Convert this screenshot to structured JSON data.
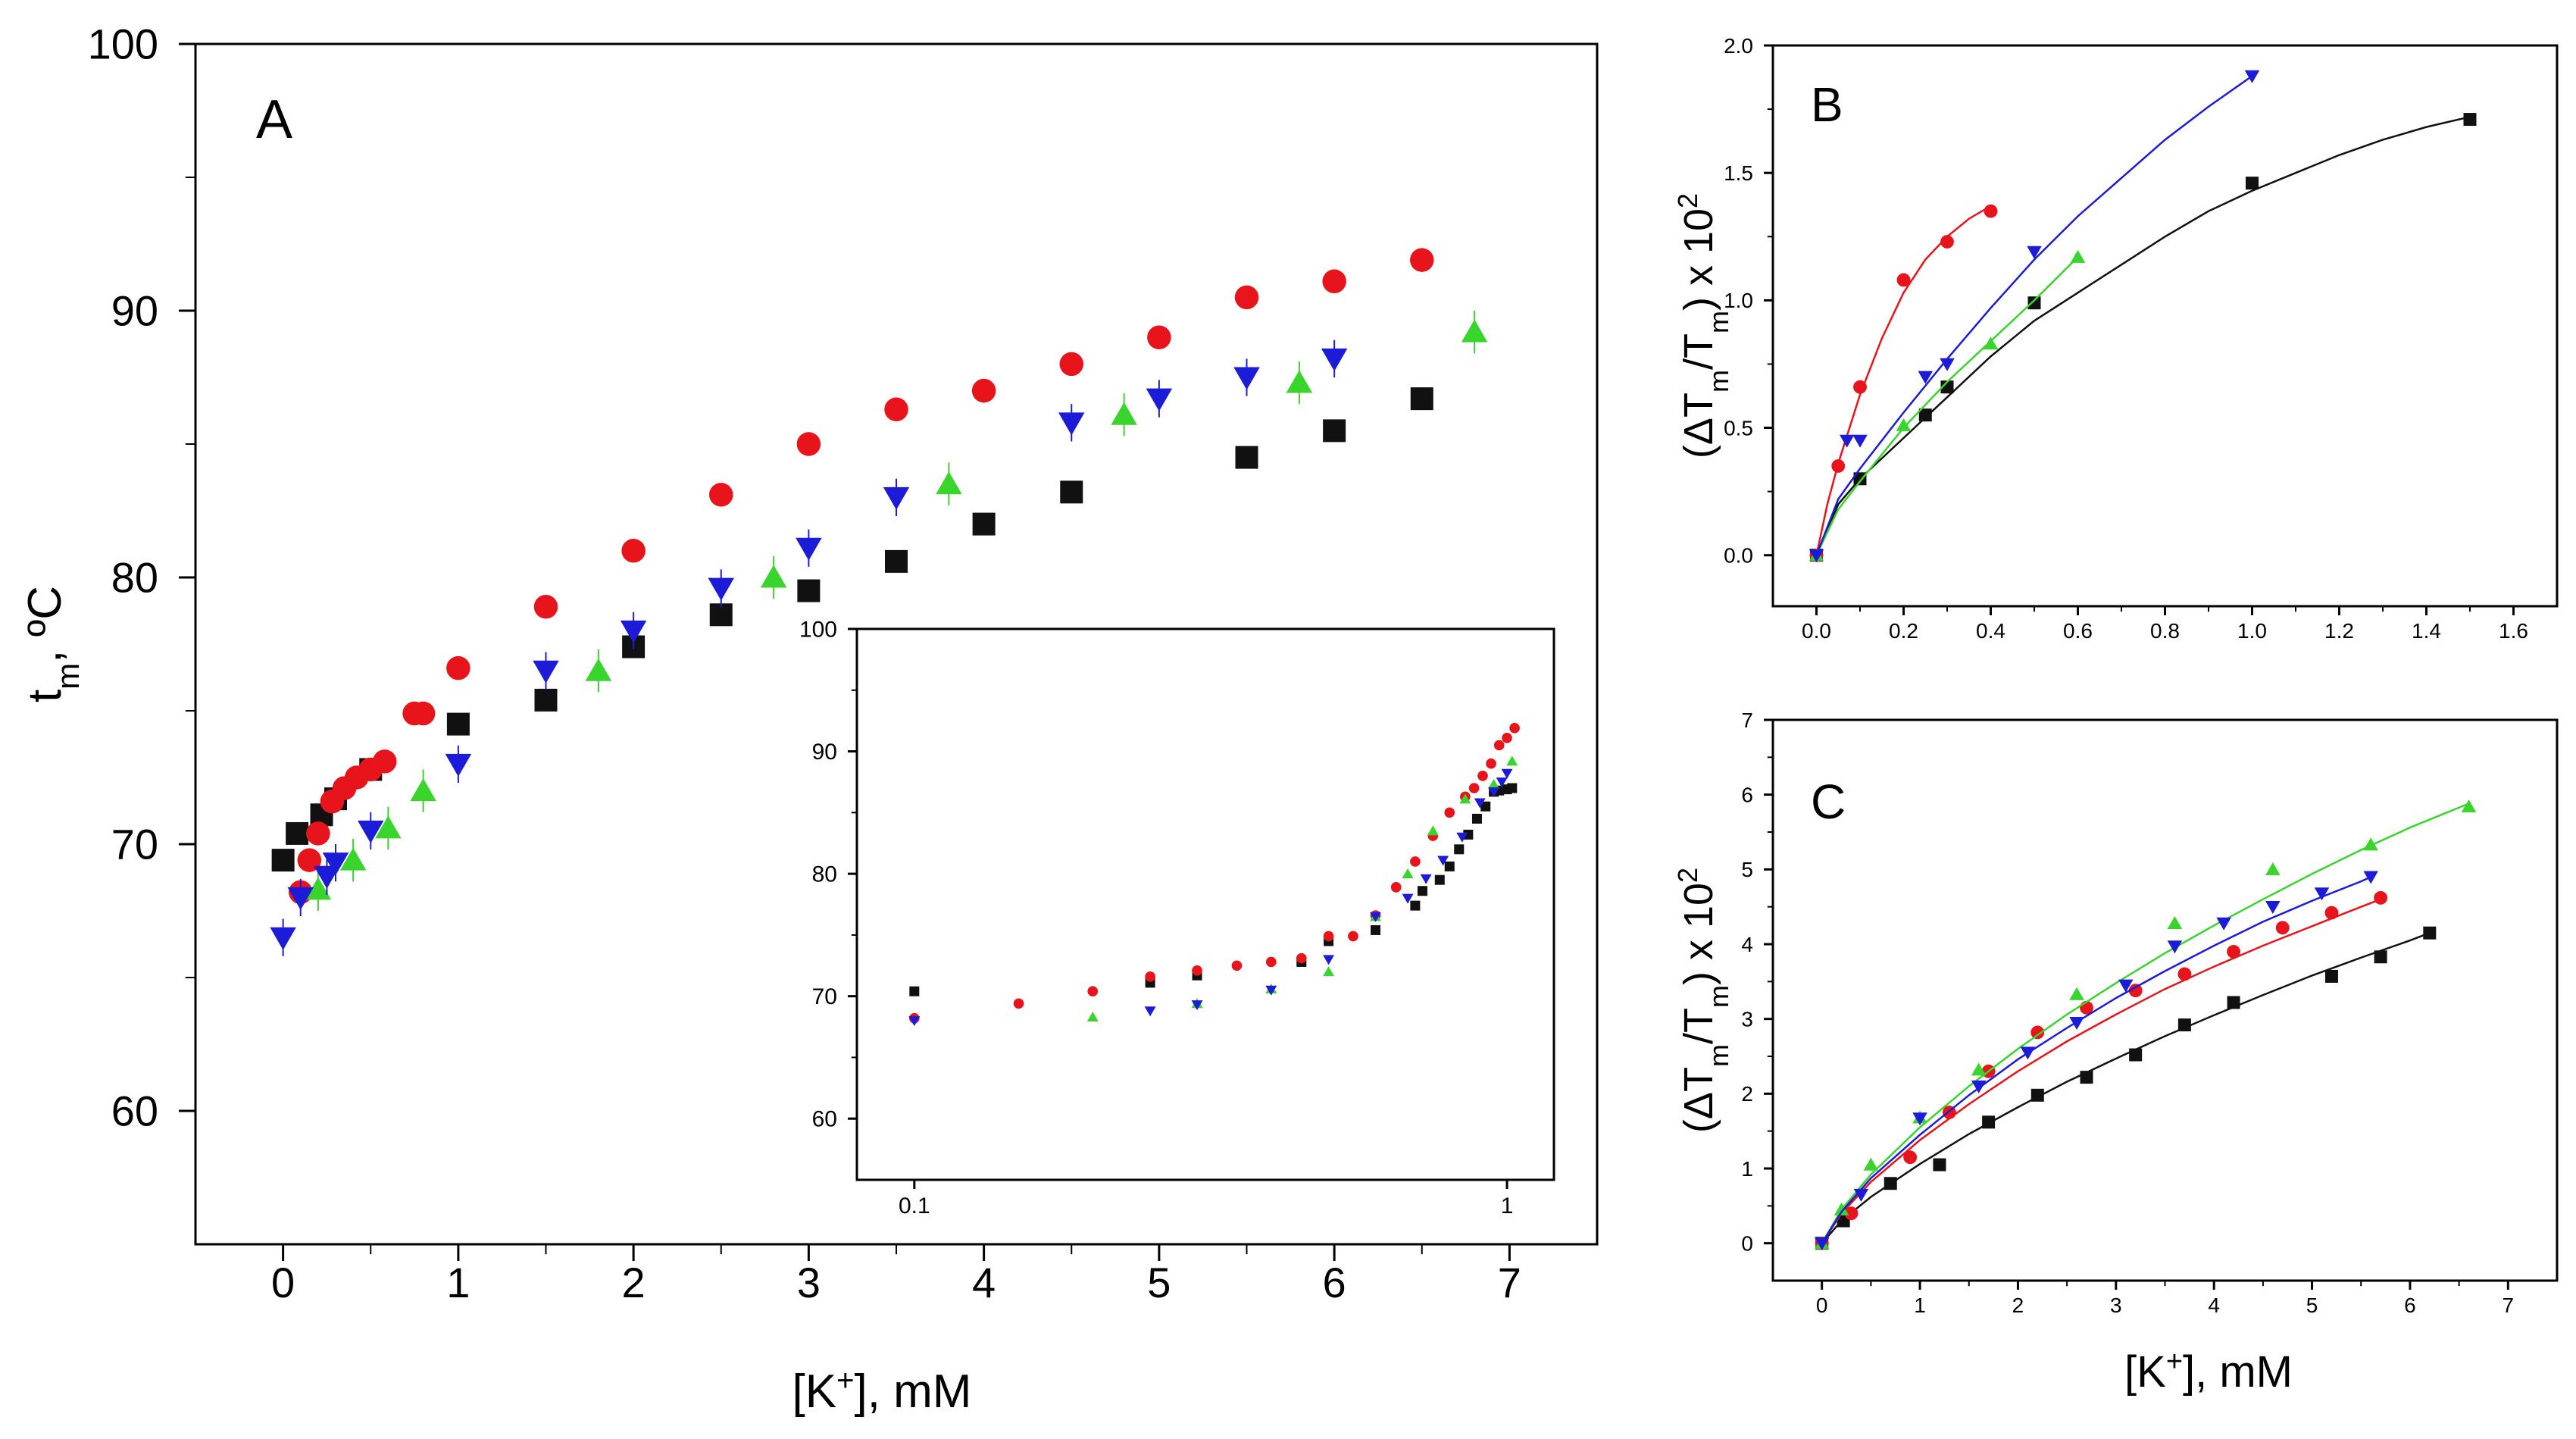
{
  "colors": {
    "black": "#111111",
    "red": "#e8141b",
    "green": "#39d42c",
    "blue": "#1b1bd8",
    "axis": "#000000"
  },
  "chart_data": [
    {
      "id": "A",
      "type": "scatter",
      "panel_label": "A",
      "xlabel_prefix": "[K",
      "xlabel_sup": "+",
      "xlabel_suffix": "], mM",
      "ylabel_main": "t",
      "ylabel_sub": "m",
      "ylabel_suffix": ", ºC",
      "xlim": [
        -0.5,
        7.5
      ],
      "ylim": [
        55,
        100
      ],
      "xticks": [
        0,
        1,
        2,
        3,
        4,
        5,
        6,
        7
      ],
      "yticks": [
        60,
        70,
        80,
        90,
        100
      ],
      "series": [
        {
          "name": "black squares",
          "marker": "square",
          "color": "black",
          "x": [
            0,
            0.08,
            0.22,
            0.3,
            0.5,
            1,
            1.5,
            2,
            2.5,
            3,
            3.5,
            4,
            4.5,
            5.5,
            6,
            6.5
          ],
          "y": [
            69.4,
            70.4,
            71.1,
            71.7,
            72.8,
            74.5,
            75.4,
            77.4,
            78.6,
            79.5,
            80.6,
            82,
            83.2,
            84.5,
            85.5,
            86.7
          ]
        },
        {
          "name": "red circles",
          "marker": "circle",
          "color": "red",
          "x": [
            0.1,
            0.15,
            0.2,
            0.28,
            0.35,
            0.42,
            0.5,
            0.58,
            0.75,
            0.8,
            1,
            1.5,
            2,
            2.5,
            3,
            3.5,
            4,
            4.5,
            5,
            5.5,
            6,
            6.5
          ],
          "y": [
            68.2,
            69.4,
            70.4,
            71.6,
            72.1,
            72.5,
            72.8,
            73.1,
            74.9,
            74.9,
            76.6,
            78.9,
            81,
            83.1,
            85,
            86.3,
            87,
            88,
            89,
            90.5,
            91.1,
            91.9
          ],
          "errors": [
            0.3,
            0.3,
            0.3,
            0.3,
            0.3,
            0.3,
            0.3,
            0.3,
            0.3,
            0.3,
            0.3,
            0.3,
            0.3,
            0.3,
            0.3,
            0.3,
            0.3,
            0.3,
            0.3,
            0.3,
            0.3,
            0.3
          ]
        },
        {
          "name": "green triangles",
          "marker": "triangle-up",
          "color": "green",
          "x": [
            0.2,
            0.4,
            0.6,
            0.8,
            1.8,
            2.8,
            3.8,
            4.8,
            5.8,
            6.8
          ],
          "y": [
            68.3,
            69.4,
            70.6,
            72.0,
            76.5,
            80.0,
            83.5,
            86.1,
            87.3,
            89.2
          ],
          "errors": [
            0.8,
            0.8,
            0.8,
            0.8,
            0.8,
            0.8,
            0.8,
            0.8,
            0.8,
            0.8
          ]
        },
        {
          "name": "blue inverted triangles",
          "marker": "triangle-down",
          "color": "blue",
          "x": [
            0,
            0.1,
            0.25,
            0.3,
            0.5,
            1,
            1.5,
            2,
            2.5,
            3,
            3.5,
            4.5,
            5,
            5.5,
            6
          ],
          "y": [
            66.5,
            68,
            68.8,
            69.3,
            70.5,
            73,
            76.5,
            78,
            79.6,
            81.1,
            83,
            85.8,
            86.7,
            87.5,
            88.2
          ],
          "errors": [
            0.7,
            0.7,
            0.7,
            0.7,
            0.7,
            0.7,
            0.7,
            0.7,
            0.7,
            0.7,
            0.7,
            0.7,
            0.7,
            0.7,
            0.7
          ]
        }
      ]
    },
    {
      "id": "A-inset",
      "type": "scatter",
      "xscale": "log",
      "xlim": [
        0.08,
        1.2
      ],
      "ylim": [
        55,
        100
      ],
      "xtick_values": [
        0.1,
        1
      ],
      "xtick_labels": [
        "0.1",
        "1"
      ],
      "yticks": [
        60,
        70,
        80,
        90,
        100
      ],
      "series": [
        {
          "name": "black squares",
          "marker": "square",
          "color": "black",
          "x": [
            0.1,
            0.25,
            0.3,
            0.45,
            0.5,
            0.6,
            0.7,
            0.72,
            0.77,
            0.8,
            0.83,
            0.86,
            0.89,
            0.92,
            0.95,
            0.97,
            1.0,
            1.02
          ],
          "y": [
            70.4,
            71.1,
            71.7,
            72.8,
            74.5,
            75.4,
            77.4,
            78.6,
            79.5,
            80.6,
            82.0,
            83.2,
            84.5,
            85.5,
            86.7,
            86.8,
            86.9,
            87.0
          ]
        },
        {
          "name": "red circles",
          "marker": "circle",
          "color": "red",
          "x": [
            0.1,
            0.15,
            0.2,
            0.25,
            0.3,
            0.35,
            0.4,
            0.45,
            0.5,
            0.55,
            0.6,
            0.65,
            0.7,
            0.75,
            0.8,
            0.85,
            0.88,
            0.91,
            0.94,
            0.97,
            1.0,
            1.03
          ],
          "y": [
            68.2,
            69.4,
            70.4,
            71.6,
            72.1,
            72.5,
            72.8,
            73.1,
            74.9,
            74.9,
            76.6,
            78.9,
            81,
            83.1,
            85,
            86.3,
            87,
            88,
            89,
            90.5,
            91.1,
            91.9
          ]
        },
        {
          "name": "green triangles",
          "marker": "triangle-up",
          "color": "green",
          "x": [
            0.2,
            0.3,
            0.4,
            0.5,
            0.6,
            0.68,
            0.75,
            0.85,
            0.95,
            1.02
          ],
          "y": [
            68.3,
            69.4,
            70.6,
            72,
            76.5,
            80,
            83.5,
            86.1,
            87.3,
            89.2
          ]
        },
        {
          "name": "blue inverted triangles",
          "marker": "triangle-down",
          "color": "blue",
          "x": [
            0.1,
            0.25,
            0.3,
            0.4,
            0.5,
            0.6,
            0.68,
            0.73,
            0.78,
            0.84,
            0.9,
            0.95,
            0.98,
            1.0
          ],
          "y": [
            68,
            68.8,
            69.3,
            70.5,
            73,
            76.5,
            78,
            79.6,
            81.1,
            83,
            85.8,
            86.7,
            87.5,
            88.2
          ]
        }
      ]
    },
    {
      "id": "B",
      "type": "scatter",
      "panel_label": "B",
      "ylabel_pre": "(ΔT",
      "ylabel_sub1": "m",
      "ylabel_mid": "/T",
      "ylabel_sub2": "m",
      "ylabel_post": ") x 10",
      "ylabel_sup": "2",
      "xlim": [
        -0.1,
        1.7
      ],
      "ylim": [
        -0.2,
        2.0
      ],
      "xticks": [
        0.0,
        0.2,
        0.4,
        0.6,
        0.8,
        1.0,
        1.2,
        1.4,
        1.6
      ],
      "yticks": [
        0.0,
        0.5,
        1.0,
        1.5,
        2.0
      ],
      "xtick_labels": [
        "0.0",
        "0.2",
        "0.4",
        "0.6",
        "0.8",
        "1.0",
        "1.2",
        "1.4",
        "1.6"
      ],
      "ytick_labels": [
        "0.0",
        "0.5",
        "1.0",
        "1.5",
        "2.0"
      ],
      "series": [
        {
          "name": "black squares",
          "marker": "square",
          "color": "black",
          "x": [
            0,
            0.1,
            0.25,
            0.3,
            0.5,
            1.0,
            1.5
          ],
          "y": [
            0,
            0.3,
            0.55,
            0.66,
            0.99,
            1.46,
            1.71
          ],
          "fit_x": [
            0,
            0.05,
            0.1,
            0.2,
            0.3,
            0.4,
            0.5,
            0.6,
            0.7,
            0.8,
            0.9,
            1.0,
            1.1,
            1.2,
            1.3,
            1.4,
            1.5
          ],
          "fit_y": [
            0,
            0.2,
            0.3,
            0.46,
            0.62,
            0.78,
            0.92,
            1.03,
            1.14,
            1.25,
            1.35,
            1.43,
            1.5,
            1.57,
            1.63,
            1.68,
            1.72
          ]
        },
        {
          "name": "red circles",
          "marker": "circle",
          "color": "red",
          "x": [
            0,
            0.05,
            0.1,
            0.2,
            0.3,
            0.4
          ],
          "y": [
            0,
            0.35,
            0.66,
            1.08,
            1.23,
            1.35
          ],
          "fit_x": [
            0,
            0.025,
            0.05,
            0.1,
            0.15,
            0.2,
            0.25,
            0.3,
            0.35,
            0.4
          ],
          "fit_y": [
            0,
            0.2,
            0.36,
            0.63,
            0.85,
            1.03,
            1.16,
            1.25,
            1.32,
            1.37
          ]
        },
        {
          "name": "green triangles",
          "marker": "triangle-up",
          "color": "green",
          "x": [
            0,
            0.2,
            0.4,
            0.6
          ],
          "y": [
            0,
            0.51,
            0.83,
            1.17
          ],
          "fit_x": [
            0,
            0.05,
            0.1,
            0.2,
            0.3,
            0.4,
            0.5,
            0.6
          ],
          "fit_y": [
            0,
            0.18,
            0.29,
            0.5,
            0.68,
            0.84,
            1.0,
            1.17
          ]
        },
        {
          "name": "blue inverted triangles",
          "marker": "triangle-down",
          "color": "blue",
          "x": [
            0,
            0.07,
            0.1,
            0.25,
            0.3,
            0.5,
            1.0
          ],
          "y": [
            0,
            0.45,
            0.45,
            0.7,
            0.75,
            1.19,
            1.88
          ],
          "fit_x": [
            0,
            0.05,
            0.1,
            0.2,
            0.3,
            0.4,
            0.5,
            0.6,
            0.7,
            0.8,
            0.9,
            1.0
          ],
          "fit_y": [
            0,
            0.22,
            0.34,
            0.56,
            0.77,
            0.97,
            1.16,
            1.33,
            1.48,
            1.63,
            1.76,
            1.88
          ]
        }
      ]
    },
    {
      "id": "C",
      "type": "scatter",
      "panel_label": "C",
      "xlabel_prefix": "[K",
      "xlabel_sup": "+",
      "xlabel_suffix": "], mM",
      "ylabel_pre": "(ΔT",
      "ylabel_sub1": "m",
      "ylabel_mid": "/T",
      "ylabel_sub2": "m",
      "ylabel_post": ") x 10",
      "ylabel_sup": "2",
      "xlim": [
        -0.5,
        7.5
      ],
      "ylim": [
        -0.5,
        7
      ],
      "xticks": [
        0,
        1,
        2,
        3,
        4,
        5,
        6,
        7
      ],
      "yticks": [
        0,
        1,
        2,
        3,
        4,
        5,
        6,
        7
      ],
      "series": [
        {
          "name": "black squares",
          "marker": "square",
          "color": "black",
          "x": [
            0,
            0.22,
            0.7,
            1.2,
            1.7,
            2.2,
            2.7,
            3.2,
            3.7,
            4.2,
            5.2,
            5.7,
            6.2
          ],
          "y": [
            0,
            0.3,
            0.8,
            1.05,
            1.62,
            1.98,
            2.22,
            2.52,
            2.92,
            3.22,
            3.57,
            3.83,
            4.15
          ],
          "fit_x": [
            0,
            0.2,
            0.5,
            1,
            1.5,
            2,
            2.5,
            3,
            3.5,
            4,
            4.5,
            5,
            5.5,
            6,
            6.2
          ],
          "fit_y": [
            0,
            0.3,
            0.62,
            1.06,
            1.46,
            1.82,
            2.16,
            2.47,
            2.77,
            3.05,
            3.32,
            3.58,
            3.82,
            4.05,
            4.15
          ]
        },
        {
          "name": "red circles",
          "marker": "circle",
          "color": "red",
          "x": [
            0,
            0.3,
            0.9,
            1.3,
            1.7,
            2.2,
            2.7,
            3.2,
            3.7,
            4.2,
            4.7,
            5.2,
            5.7
          ],
          "y": [
            0,
            0.4,
            1.15,
            1.75,
            2.3,
            2.82,
            3.15,
            3.38,
            3.6,
            3.9,
            4.22,
            4.42,
            4.62
          ],
          "fit_x": [
            0,
            0.2,
            0.5,
            1,
            1.5,
            2,
            2.5,
            3,
            3.5,
            4,
            4.5,
            5,
            5.5,
            5.7
          ],
          "fit_y": [
            0,
            0.4,
            0.82,
            1.38,
            1.86,
            2.3,
            2.7,
            3.06,
            3.4,
            3.7,
            3.98,
            4.24,
            4.5,
            4.6
          ]
        },
        {
          "name": "green triangles",
          "marker": "triangle-up",
          "color": "green",
          "x": [
            0,
            0.2,
            0.5,
            1.0,
            1.6,
            2.6,
            3.6,
            4.6,
            5.6,
            6.6
          ],
          "y": [
            0,
            0.45,
            1.05,
            1.68,
            2.32,
            3.33,
            4.28,
            5.0,
            5.33,
            5.84
          ],
          "fit_x": [
            0,
            0.2,
            0.5,
            1,
            1.5,
            2,
            2.5,
            3,
            3.5,
            4,
            4.5,
            5,
            5.5,
            6,
            6.6
          ],
          "fit_y": [
            0,
            0.45,
            0.92,
            1.55,
            2.1,
            2.6,
            3.06,
            3.48,
            3.88,
            4.25,
            4.6,
            4.94,
            5.26,
            5.56,
            5.88
          ]
        },
        {
          "name": "blue inverted triangles",
          "marker": "triangle-down",
          "color": "blue",
          "x": [
            0,
            0.4,
            1.0,
            1.6,
            2.1,
            2.6,
            3.1,
            3.6,
            4.1,
            4.6,
            5.1,
            5.6
          ],
          "y": [
            0,
            0.65,
            1.67,
            2.1,
            2.55,
            2.95,
            3.45,
            3.97,
            4.28,
            4.5,
            4.68,
            4.9
          ],
          "fit_x": [
            0,
            0.2,
            0.5,
            1,
            1.5,
            2,
            2.5,
            3,
            3.5,
            4,
            4.5,
            5,
            5.5,
            5.6
          ],
          "fit_y": [
            0,
            0.42,
            0.87,
            1.45,
            1.98,
            2.46,
            2.88,
            3.28,
            3.64,
            3.98,
            4.3,
            4.58,
            4.84,
            4.9
          ]
        }
      ]
    }
  ]
}
